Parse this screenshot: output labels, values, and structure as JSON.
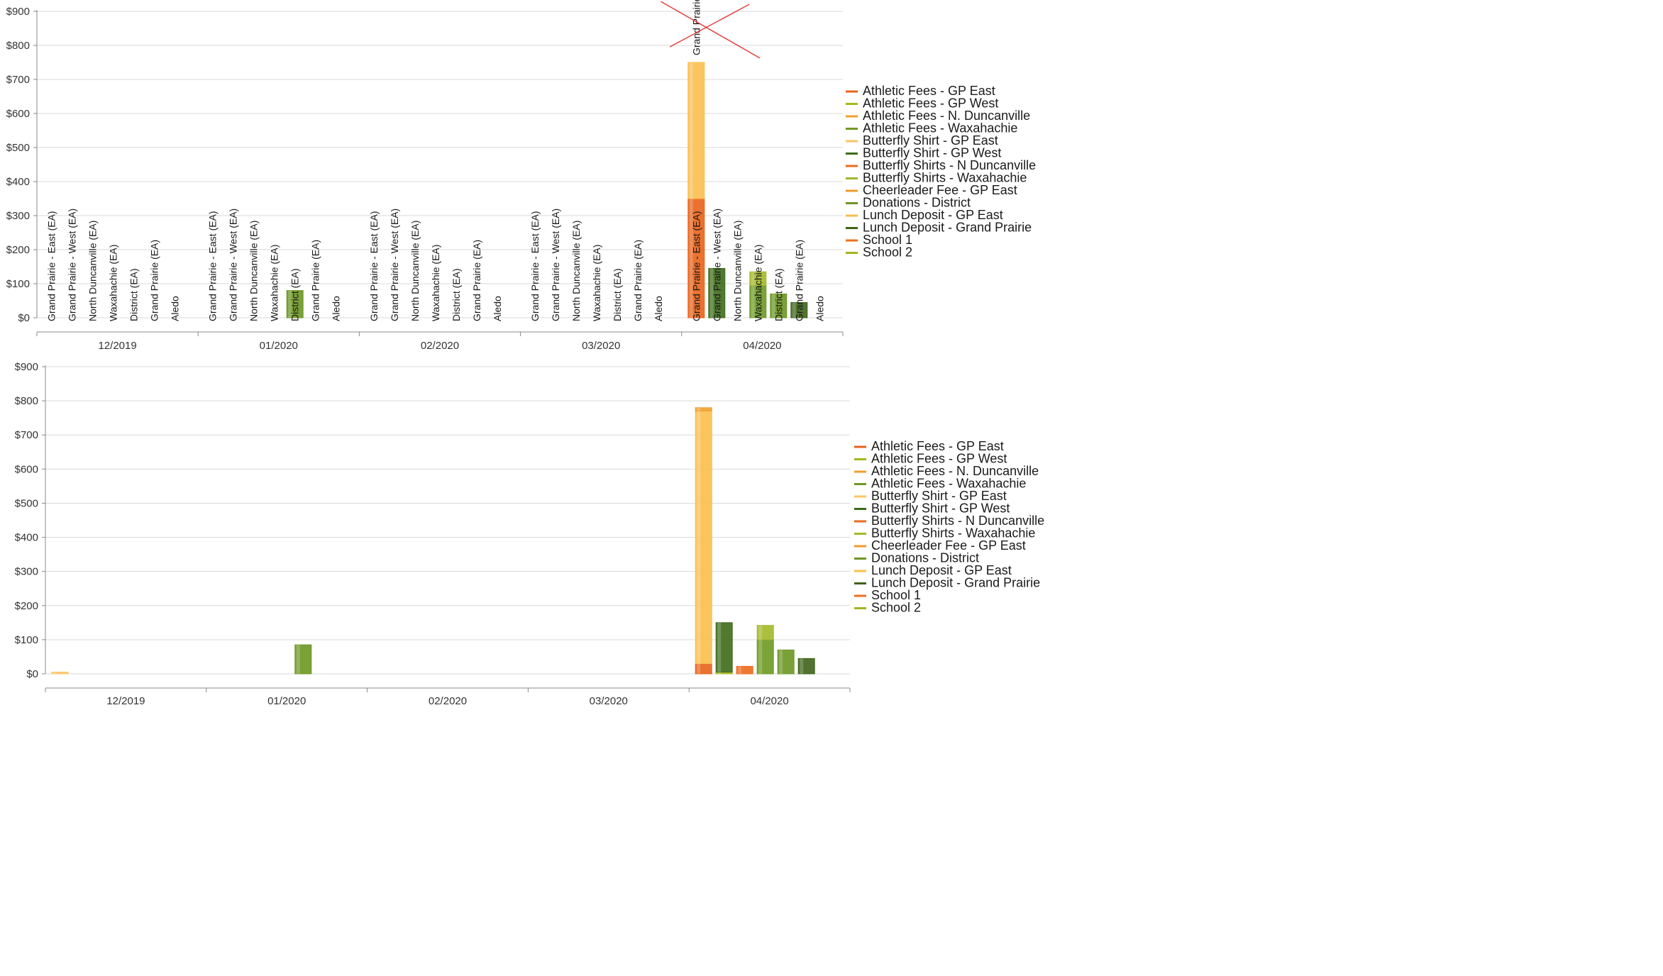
{
  "chart_data": [
    {
      "type": "bar",
      "stacked": true,
      "y_ticks": [
        "$0",
        "$100",
        "$200",
        "$300",
        "$400",
        "$500",
        "$600",
        "$700",
        "$800",
        "$900"
      ],
      "ylim": [
        0,
        900
      ],
      "grid": true,
      "legend_position": "right",
      "categories": [
        "12/2019",
        "01/2020",
        "02/2020",
        "03/2020",
        "04/2020"
      ],
      "sub_categories": [
        "Grand Prairie - East (EA)",
        "Grand Prairie - West (EA)",
        "North Duncanville (EA)",
        "Waxahachie (EA)",
        "District (EA)",
        "Grand Prairie (EA)",
        "Aledo"
      ],
      "overflow_label": "Grand Prairie",
      "series": [
        {
          "name": "Athletic Fees - GP East",
          "color": "#e8631a"
        },
        {
          "name": "Athletic Fees - GP West",
          "color": "#a6b81c"
        },
        {
          "name": "Athletic Fees - N. Duncanville",
          "color": "#f0a030"
        },
        {
          "name": "Athletic Fees - Waxahachie",
          "color": "#6d9a22"
        },
        {
          "name": "Butterfly Shirt - GP East",
          "color": "#fbc565"
        },
        {
          "name": "Butterfly Shirt - GP West",
          "color": "#3d6b1a"
        },
        {
          "name": "Butterfly Shirts - N Duncanville",
          "color": "#ec6a1c"
        },
        {
          "name": "Butterfly Shirts - Waxahachie",
          "color": "#a3b82a"
        },
        {
          "name": "Cheerleader Fee - GP East",
          "color": "#f09a2c"
        },
        {
          "name": "Donations - District",
          "color": "#6c9622"
        },
        {
          "name": "Lunch Deposit - GP East",
          "color": "#fbbf4c"
        },
        {
          "name": "Lunch Deposit - Grand Prairie",
          "color": "#3e6418"
        },
        {
          "name": "School 1",
          "color": "#ee6f1e"
        },
        {
          "name": "School 2",
          "color": "#a5b41e"
        }
      ],
      "bars": [
        {
          "period": 1,
          "slot": 4,
          "segments": [
            {
              "series": 9,
              "value": 80
            }
          ]
        },
        {
          "period": 4,
          "slot": 0,
          "segments": [
            {
              "series": 0,
              "value": 350
            },
            {
              "series": 10,
              "value": 400
            }
          ]
        },
        {
          "period": 4,
          "slot": 1,
          "segments": [
            {
              "series": 5,
              "value": 145
            }
          ]
        },
        {
          "period": 4,
          "slot": 3,
          "segments": [
            {
              "series": 3,
              "value": 95
            },
            {
              "series": 7,
              "value": 40
            }
          ]
        },
        {
          "period": 4,
          "slot": 4,
          "segments": [
            {
              "series": 9,
              "value": 70
            }
          ]
        },
        {
          "period": 4,
          "slot": 5,
          "segments": [
            {
              "series": 11,
              "value": 45
            }
          ]
        }
      ]
    },
    {
      "type": "bar",
      "stacked": true,
      "y_ticks": [
        "$0",
        "$100",
        "$200",
        "$300",
        "$400",
        "$500",
        "$600",
        "$700",
        "$800",
        "$900"
      ],
      "ylim": [
        0,
        900
      ],
      "grid": true,
      "legend_position": "right",
      "categories": [
        "12/2019",
        "01/2020",
        "02/2020",
        "03/2020",
        "04/2020"
      ],
      "series": [
        {
          "name": "Athletic Fees - GP East",
          "color": "#e8631a"
        },
        {
          "name": "Athletic Fees - GP West",
          "color": "#a6b81c"
        },
        {
          "name": "Athletic Fees - N. Duncanville",
          "color": "#f0a030"
        },
        {
          "name": "Athletic Fees - Waxahachie",
          "color": "#6d9a22"
        },
        {
          "name": "Butterfly Shirt - GP East",
          "color": "#fbc565"
        },
        {
          "name": "Butterfly Shirt - GP West",
          "color": "#3d6b1a"
        },
        {
          "name": "Butterfly Shirts - N Duncanville",
          "color": "#ec6a1c"
        },
        {
          "name": "Butterfly Shirts - Waxahachie",
          "color": "#a3b82a"
        },
        {
          "name": "Cheerleader Fee - GP East",
          "color": "#f09a2c"
        },
        {
          "name": "Donations - District",
          "color": "#6c9622"
        },
        {
          "name": "Lunch Deposit - GP East",
          "color": "#fbbf4c"
        },
        {
          "name": "Lunch Deposit - Grand Prairie",
          "color": "#3e6418"
        },
        {
          "name": "School 1",
          "color": "#ee6f1e"
        },
        {
          "name": "School 2",
          "color": "#a5b41e"
        }
      ],
      "bars": [
        {
          "period": 0,
          "slot": 0,
          "segments": [
            {
              "series": 4,
              "value": 5
            }
          ]
        },
        {
          "period": 1,
          "slot": 4,
          "segments": [
            {
              "series": 9,
              "value": 85
            }
          ]
        },
        {
          "period": 4,
          "slot": 0,
          "segments": [
            {
              "series": 0,
              "value": 30
            },
            {
              "series": 10,
              "value": 740
            },
            {
              "series": 2,
              "value": 10
            }
          ]
        },
        {
          "period": 4,
          "slot": 1,
          "segments": [
            {
              "series": 1,
              "value": 5
            },
            {
              "series": 5,
              "value": 145
            }
          ]
        },
        {
          "period": 4,
          "slot": 2,
          "segments": [
            {
              "series": 6,
              "value": 22
            }
          ]
        },
        {
          "period": 4,
          "slot": 3,
          "segments": [
            {
              "series": 3,
              "value": 100
            },
            {
              "series": 7,
              "value": 42
            }
          ]
        },
        {
          "period": 4,
          "slot": 4,
          "segments": [
            {
              "series": 9,
              "value": 70
            }
          ]
        },
        {
          "period": 4,
          "slot": 5,
          "segments": [
            {
              "series": 11,
              "value": 45
            }
          ]
        }
      ]
    }
  ]
}
